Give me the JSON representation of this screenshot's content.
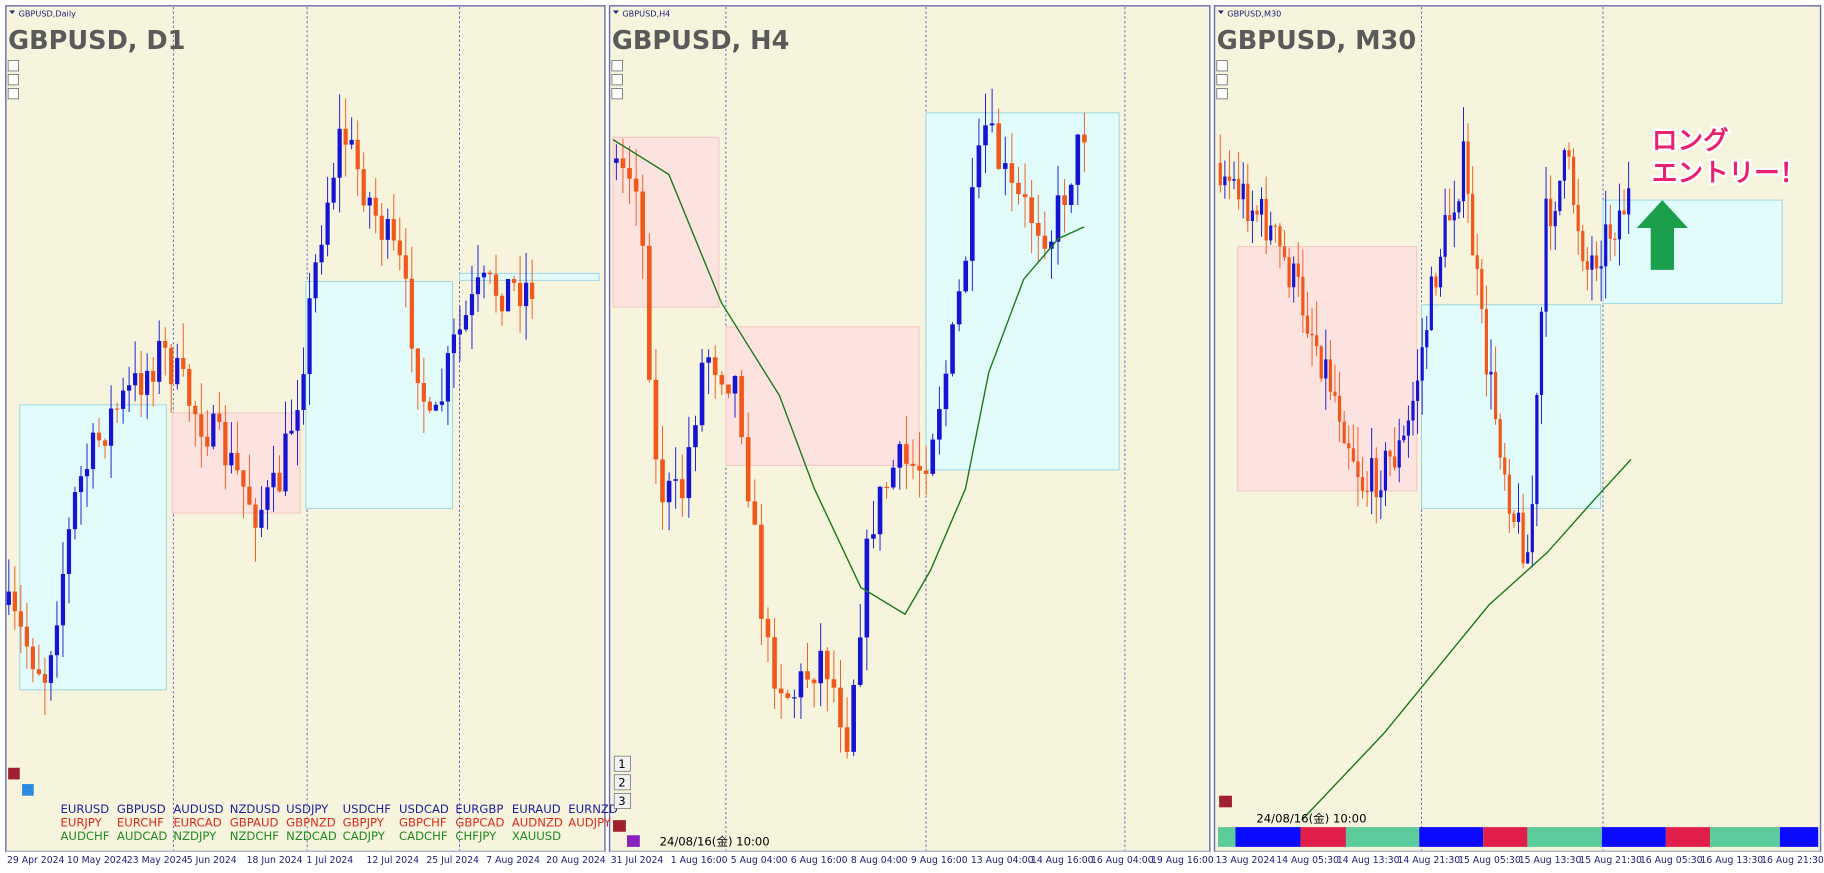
{
  "panels": [
    {
      "header": "GBPUSD,Daily",
      "title": "GBPUSD, D1",
      "time_axis": [
        "29 Apr 2024",
        "10 May 2024",
        "23 May 2024",
        "5 Jun 2024",
        "18 Jun 2024",
        "1 Jul 2024",
        "12 Jul 2024",
        "25 Jul 2024",
        "7 Aug 2024",
        "20 Aug 2024"
      ],
      "symbols": [
        [
          "EURUSD",
          "GBPUSD",
          "AUDUSD",
          "NZDUSD",
          "USDJPY",
          "USDCHF",
          "USDCAD",
          "EURGBP",
          "EURAUD",
          "EURNZD"
        ],
        [
          "EURJPY",
          "EURCHF",
          "EURCAD",
          "GBPAUD",
          "GBPNZD",
          "GBPJPY",
          "GBPCHF",
          "GBPCAD",
          "AUDNZD",
          "AUDJPY"
        ],
        [
          "AUDCHF",
          "AUDCAD",
          "NZDJPY",
          "NZDCHF",
          "NZDCAD",
          "CADJPY",
          "CADCHF",
          "CHFJPY",
          "XAUUSD"
        ]
      ]
    },
    {
      "header": "GBPUSD,H4",
      "title": "GBPUSD, H4",
      "buttons": [
        "1",
        "2",
        "3"
      ],
      "timestamp": "24/08/16(金) 10:00",
      "time_axis": [
        "31 Jul 2024",
        "1 Aug 16:00",
        "5 Aug 04:00",
        "6 Aug 16:00",
        "8 Aug 04:00",
        "9 Aug 16:00",
        "13 Aug 04:00",
        "14 Aug 16:00",
        "16 Aug 04:00",
        "19 Aug 16:00"
      ]
    },
    {
      "header": "GBPUSD,M30",
      "title": "GBPUSD, M30",
      "timestamp": "24/08/16(金) 10:00",
      "time_axis": [
        "13 Aug 2024",
        "14 Aug 05:30",
        "14 Aug 13:30",
        "14 Aug 21:30",
        "15 Aug 05:30",
        "15 Aug 13:30",
        "15 Aug 21:30",
        "16 Aug 05:30",
        "16 Aug 13:30",
        "16 Aug 21:30"
      ],
      "annotation": [
        "ロング",
        "エントリー！"
      ]
    }
  ]
}
